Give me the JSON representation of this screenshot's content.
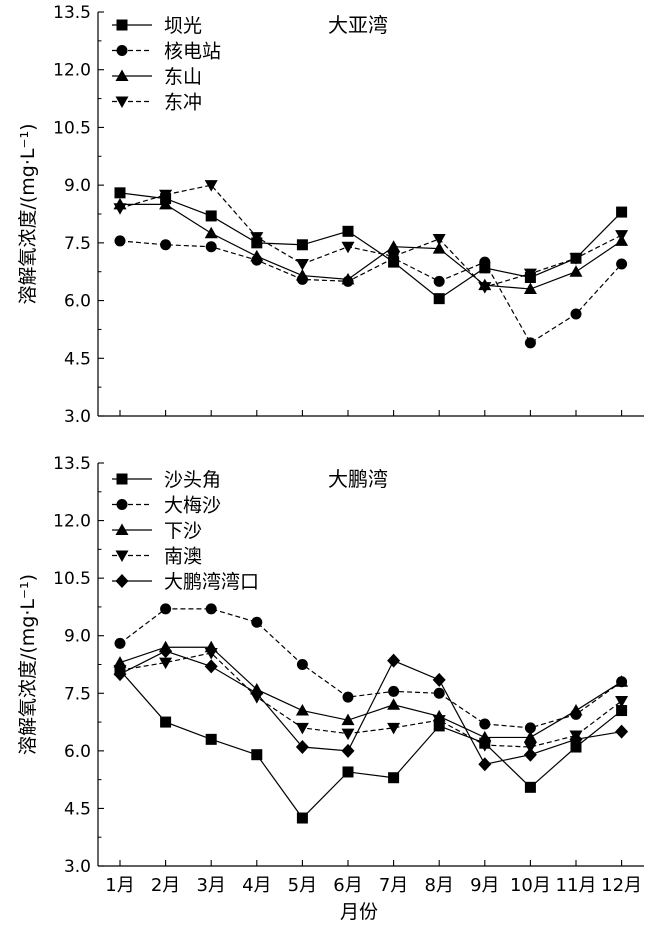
{
  "chart_data": [
    {
      "type": "line",
      "title": "大亚湾",
      "xlabel": "",
      "ylabel": "溶解氧浓度/(mg·L⁻¹)",
      "ylim": [
        3.0,
        13.5
      ],
      "yticks": [
        "3.0",
        "4.5",
        "6.0",
        "7.5",
        "9.0",
        "10.5",
        "12.0",
        "13.5"
      ],
      "categories": [
        "1月",
        "2月",
        "3月",
        "4月",
        "5月",
        "6月",
        "7月",
        "8月",
        "9月",
        "10月",
        "11月",
        "12月"
      ],
      "legend_position": "top-left",
      "series": [
        {
          "name": "坝光",
          "marker": "square",
          "dash": false,
          "values": [
            8.8,
            8.65,
            8.2,
            7.5,
            7.45,
            7.8,
            7.0,
            6.05,
            6.85,
            6.6,
            7.1,
            8.3
          ]
        },
        {
          "name": "核电站",
          "marker": "circle",
          "dash": true,
          "values": [
            7.55,
            7.45,
            7.4,
            7.05,
            6.55,
            6.5,
            7.1,
            6.5,
            7.0,
            4.9,
            5.65,
            6.95
          ]
        },
        {
          "name": "东山",
          "marker": "triangle-up",
          "dash": false,
          "values": [
            8.5,
            8.5,
            7.75,
            7.15,
            6.65,
            6.55,
            7.4,
            7.35,
            6.4,
            6.3,
            6.75,
            7.55
          ]
        },
        {
          "name": "东冲",
          "marker": "triangle-down",
          "dash": true,
          "values": [
            8.4,
            8.75,
            9.0,
            7.65,
            6.95,
            7.4,
            7.15,
            7.6,
            6.35,
            6.7,
            7.1,
            7.7
          ]
        }
      ]
    },
    {
      "type": "line",
      "title": "大鹏湾",
      "xlabel": "月份",
      "ylabel": "溶解氧浓度/(mg·L⁻¹)",
      "ylim": [
        3.0,
        13.5
      ],
      "yticks": [
        "3.0",
        "4.5",
        "6.0",
        "7.5",
        "9.0",
        "10.5",
        "12.0",
        "13.5"
      ],
      "categories": [
        "1月",
        "2月",
        "3月",
        "4月",
        "5月",
        "6月",
        "7月",
        "8月",
        "9月",
        "10月",
        "11月",
        "12月"
      ],
      "legend_position": "top-left",
      "series": [
        {
          "name": "沙头角",
          "marker": "square",
          "dash": false,
          "values": [
            8.1,
            6.75,
            6.3,
            5.9,
            4.25,
            5.45,
            5.3,
            6.65,
            6.2,
            5.05,
            6.1,
            7.05
          ]
        },
        {
          "name": "大梅沙",
          "marker": "circle",
          "dash": true,
          "values": [
            8.8,
            9.7,
            9.7,
            9.35,
            8.25,
            7.4,
            7.55,
            7.5,
            6.7,
            6.6,
            6.95,
            7.8
          ]
        },
        {
          "name": "下沙",
          "marker": "triangle-up",
          "dash": false,
          "values": [
            8.3,
            8.7,
            8.7,
            7.6,
            7.05,
            6.8,
            7.2,
            6.9,
            6.35,
            6.35,
            7.05,
            7.8
          ]
        },
        {
          "name": "南澳",
          "marker": "triangle-down",
          "dash": true,
          "values": [
            8.1,
            8.3,
            8.55,
            7.4,
            6.6,
            6.45,
            6.6,
            6.8,
            6.15,
            6.1,
            6.4,
            7.3
          ]
        },
        {
          "name": "大鹏湾湾口",
          "marker": "diamond",
          "dash": false,
          "values": [
            8.0,
            8.6,
            8.2,
            7.5,
            6.1,
            6.0,
            8.35,
            7.85,
            5.65,
            5.9,
            6.3,
            6.5
          ]
        }
      ]
    }
  ]
}
